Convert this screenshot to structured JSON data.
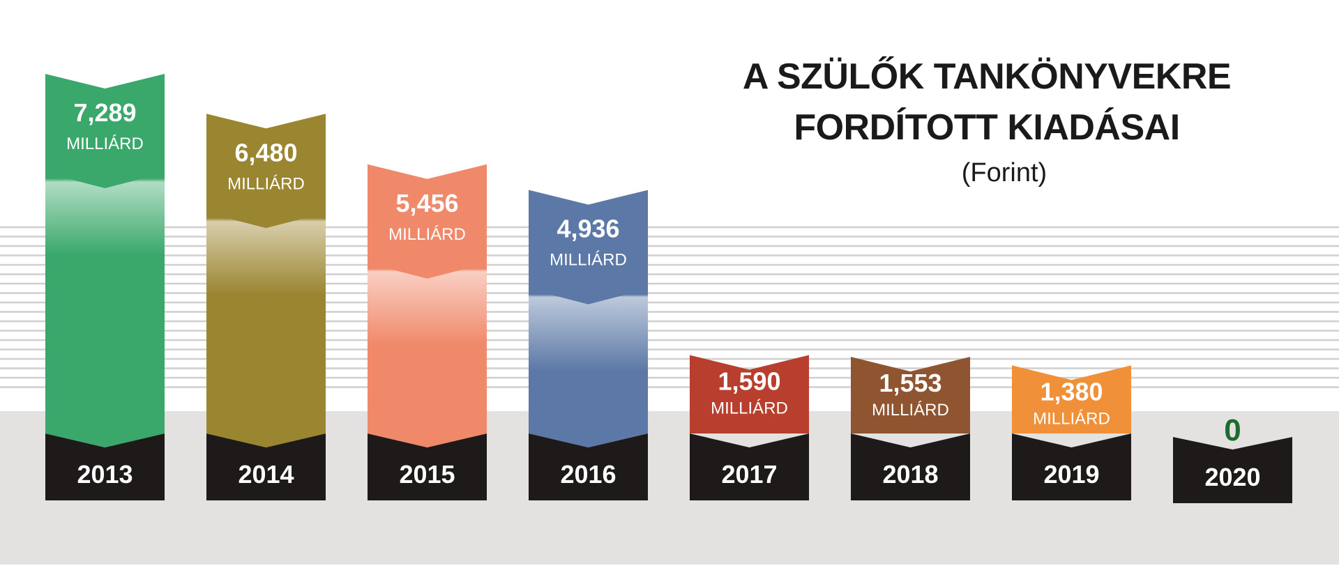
{
  "chart_data": {
    "type": "bar",
    "title": [
      "A SZÜLŐK TANKÖNYVEKRE",
      "FORDÍTOTT KIADÁSAI"
    ],
    "subtitle": "(Forint)",
    "unit": "MILLIÁRD",
    "ylim": [
      0,
      7.289
    ],
    "grid": true,
    "categories": [
      "2013",
      "2014",
      "2015",
      "2016",
      "2017",
      "2018",
      "2019",
      "2020"
    ],
    "values": [
      7.289,
      6.48,
      5.456,
      4.936,
      1.59,
      1.553,
      1.38,
      0
    ],
    "value_labels": [
      "7,289",
      "6,480",
      "5,456",
      "4,936",
      "1,590",
      "1,553",
      "1,380",
      "0"
    ],
    "colors": [
      "#3aa86b",
      "#9a8530",
      "#f0886a",
      "#5b78a6",
      "#b83f2e",
      "#8e5530",
      "#f09038",
      "#1e6b30"
    ]
  }
}
